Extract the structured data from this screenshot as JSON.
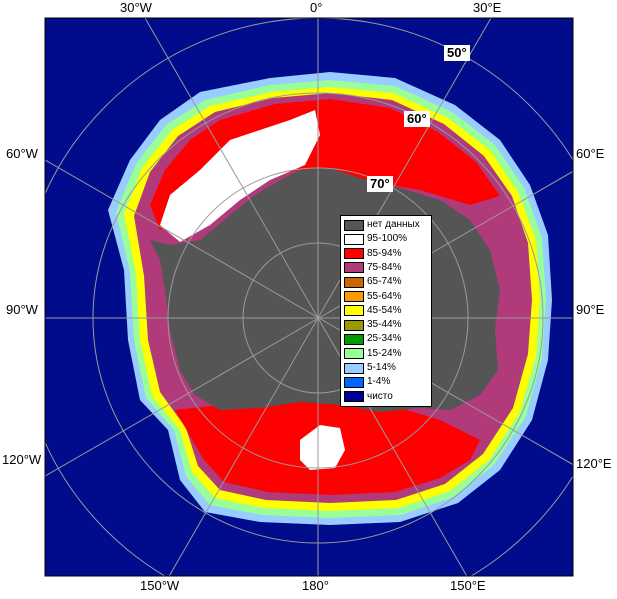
{
  "map": {
    "top_labels": [
      "30°W",
      "0°",
      "30°E"
    ],
    "left_labels": [
      "60°W",
      "90°W",
      "120°W"
    ],
    "right_labels": [
      "60°E",
      "90°E",
      "120°E"
    ],
    "bottom_labels": [
      "150°W",
      "180°",
      "150°E"
    ],
    "latitude_labels": [
      "50°",
      "60°",
      "70°"
    ]
  },
  "legend": {
    "items": [
      {
        "label": "нет данных",
        "color": "#555555"
      },
      {
        "label": "95-100%",
        "color": "#ffffff"
      },
      {
        "label": "85-94%",
        "color": "#ff0000"
      },
      {
        "label": "75-84%",
        "color": "#b03a7a"
      },
      {
        "label": "65-74%",
        "color": "#cc6600"
      },
      {
        "label": "55-64%",
        "color": "#ff9900"
      },
      {
        "label": "45-54%",
        "color": "#ffff00"
      },
      {
        "label": "35-44%",
        "color": "#999900"
      },
      {
        "label": "25-34%",
        "color": "#009900"
      },
      {
        "label": "15-24%",
        "color": "#99ff99"
      },
      {
        "label": "5-14%",
        "color": "#99ccff"
      },
      {
        "label": "1-4%",
        "color": "#0066ff"
      },
      {
        "label": "чисто",
        "color": "#000099"
      }
    ]
  },
  "colors": {
    "ocean": "#000c8c",
    "land": "#555555",
    "grid": "#9a9a9a"
  }
}
